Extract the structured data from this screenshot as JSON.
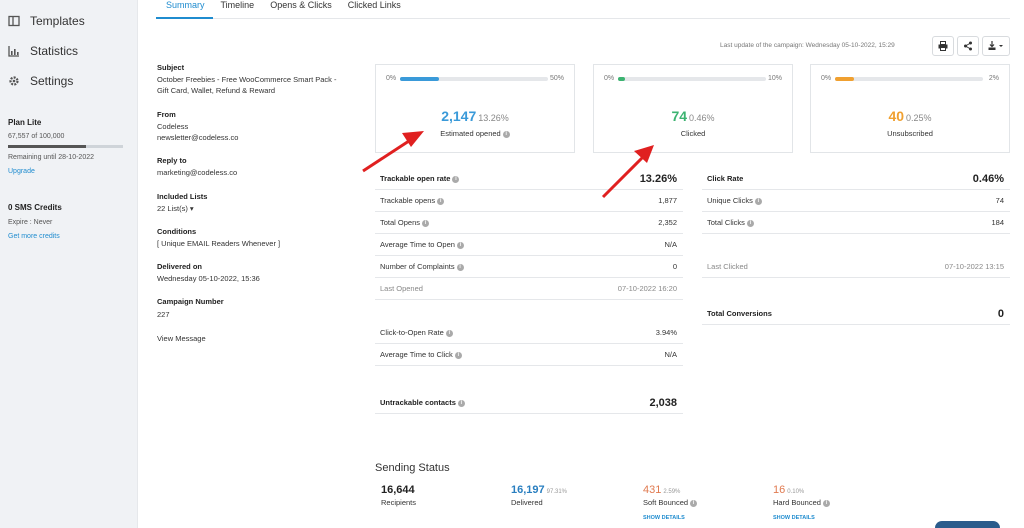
{
  "sidebar": {
    "items": [
      {
        "label": "Templates",
        "icon": "templates-icon"
      },
      {
        "label": "Statistics",
        "icon": "statistics-icon"
      },
      {
        "label": "Settings",
        "icon": "gear-icon"
      }
    ],
    "plan": {
      "title": "Plan Lite",
      "count": "67,557 of 100,000",
      "usage_fraction": 0.676,
      "remaining": "Remaining until 28-10-2022",
      "upgrade": "Upgrade"
    },
    "sms": {
      "title": "0 SMS Credits",
      "expire": "Expire : Never",
      "more": "Get more credits"
    }
  },
  "tabs": [
    "Summary",
    "Timeline",
    "Opens & Clicks",
    "Clicked Links"
  ],
  "header": {
    "last_update": "Last update of the campaign: Wednesday 05-10-2022, 15:29",
    "buttons": [
      "print-icon",
      "share-icon",
      "download-icon"
    ]
  },
  "details": {
    "subject_label": "Subject",
    "subject_lines": [
      "October Freebies - Free WooCommerce Smart Pack -",
      "Gift Card, Wallet, Refund & Reward"
    ],
    "from_label": "From",
    "from_lines": [
      "Codeless",
      "newsletter@codeless.co"
    ],
    "reply_label": "Reply to",
    "reply_value": "marketing@codeless.co",
    "lists_label": "Included Lists",
    "lists_value": "22 List(s) ▾",
    "conditions_label": "Conditions",
    "conditions_value": "[ Unique EMAIL Readers Whenever ]",
    "delivered_label": "Delivered on",
    "delivered_value": "Wednesday 05-10-2022, 15:36",
    "campaign_label": "Campaign Number",
    "campaign_value": "227",
    "view_message": "View Message"
  },
  "cards": [
    {
      "lo": "0%",
      "hi": "50%",
      "fill_fraction": 0.265,
      "color": "#3a9ad9",
      "value": "2,147",
      "pct": "13.26%",
      "caption": "Estimated opened"
    },
    {
      "lo": "0%",
      "hi": "10%",
      "fill_fraction": 0.046,
      "color": "#3cb371",
      "value": "74",
      "pct": "0.46%",
      "caption": "Clicked"
    },
    {
      "lo": "0%",
      "hi": "2%",
      "fill_fraction": 0.125,
      "color": "#f0a030",
      "value": "40",
      "pct": "0.25%",
      "caption": "Unsubscribed"
    }
  ],
  "opens_table": [
    {
      "label": "Trackable open rate",
      "value": "13.26%",
      "bold": true,
      "info": true
    },
    {
      "label": "Trackable opens",
      "value": "1,877",
      "info": true
    },
    {
      "label": "Total Opens",
      "value": "2,352",
      "info": true
    },
    {
      "label": "Average Time to Open",
      "value": "N/A",
      "info": true
    },
    {
      "label": "Number of Complaints",
      "value": "0",
      "info": true
    },
    {
      "label": "Last Opened",
      "value": "07-10-2022 16:20",
      "muted": true
    },
    {
      "label": "Click-to-Open Rate",
      "value": "3.94%",
      "info": true
    },
    {
      "label": "Average Time to Click",
      "value": "N/A",
      "info": true
    },
    {
      "label": "Untrackable contacts",
      "value": "2,038",
      "bold": true,
      "info": true
    }
  ],
  "clicks_table": [
    {
      "label": "Click Rate",
      "value": "0.46%",
      "bold": true
    },
    {
      "label": "Unique Clicks",
      "value": "74",
      "info": true
    },
    {
      "label": "Total Clicks",
      "value": "184",
      "info": true
    },
    {
      "label": "Last Clicked",
      "value": "07-10-2022 13:15",
      "muted": true
    },
    {
      "label": "Total Conversions",
      "value": "0",
      "bold": true
    }
  ],
  "sending_status": {
    "title": "Sending Status",
    "items": [
      {
        "value": "16,644",
        "pct": "",
        "label": "Recipients",
        "color": "#222",
        "link": ""
      },
      {
        "value": "16,197",
        "pct": "97.31%",
        "label": "Delivered",
        "color": "#2a7fc0",
        "link": ""
      },
      {
        "value": "431",
        "pct": "2.59%",
        "label": "Soft Bounced",
        "color": "#e07a50",
        "link": "SHOW DETAILS"
      },
      {
        "value": "16",
        "pct": "0.10%",
        "label": "Hard Bounced",
        "color": "#e07a50",
        "link": "SHOW DETAILS"
      }
    ]
  },
  "colors": {
    "accent": "#1f8ccf",
    "arrow": "#e02020"
  }
}
